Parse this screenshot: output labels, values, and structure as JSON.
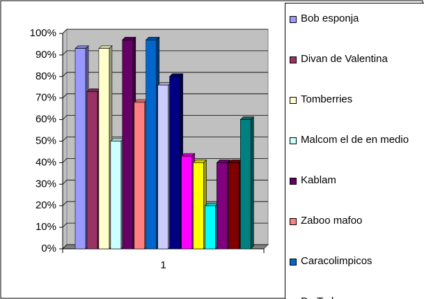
{
  "chart_data": {
    "type": "bar3d",
    "categories": [
      "1"
    ],
    "series": [
      {
        "name": "Bob esponja",
        "color": "#9999ff",
        "values": [
          93
        ]
      },
      {
        "name": "Divan de Valentina",
        "color": "#993366",
        "values": [
          73
        ]
      },
      {
        "name": "Tomberries",
        "color": "#ffffcc",
        "values": [
          93
        ]
      },
      {
        "name": "Malcom el de en medio",
        "color": "#ccffff",
        "values": [
          50
        ]
      },
      {
        "name": "Kablam",
        "color": "#660066",
        "values": [
          97
        ]
      },
      {
        "name": "Zaboo mafoo",
        "color": "#ff8080",
        "values": [
          68
        ]
      },
      {
        "name": "Caracolimpicos",
        "color": "#0066cc",
        "values": [
          97
        ]
      },
      {
        "name": "De Todo",
        "color": "#ccccff",
        "values": [
          76
        ]
      },
      {
        "color": "#000080",
        "values": [
          80
        ]
      },
      {
        "color": "#ff00ff",
        "values": [
          43
        ]
      },
      {
        "color": "#ffff00",
        "values": [
          40
        ]
      },
      {
        "color": "#00ffff",
        "values": [
          20
        ]
      },
      {
        "color": "#800080",
        "values": [
          40
        ]
      },
      {
        "color": "#800000",
        "values": [
          40
        ]
      },
      {
        "color": "#008080",
        "values": [
          60
        ]
      }
    ],
    "ylim": [
      0,
      100
    ],
    "yticks": [
      {
        "value": 0,
        "label": "0%"
      },
      {
        "value": 10,
        "label": "10%"
      },
      {
        "value": 20,
        "label": "20%"
      },
      {
        "value": 30,
        "label": "30%"
      },
      {
        "value": 40,
        "label": "40%"
      },
      {
        "value": 50,
        "label": "50%"
      },
      {
        "value": 60,
        "label": "60%"
      },
      {
        "value": 70,
        "label": "70%"
      },
      {
        "value": 80,
        "label": "80%"
      },
      {
        "value": 90,
        "label": "90%"
      },
      {
        "value": 100,
        "label": "100%"
      }
    ],
    "grid": true
  }
}
